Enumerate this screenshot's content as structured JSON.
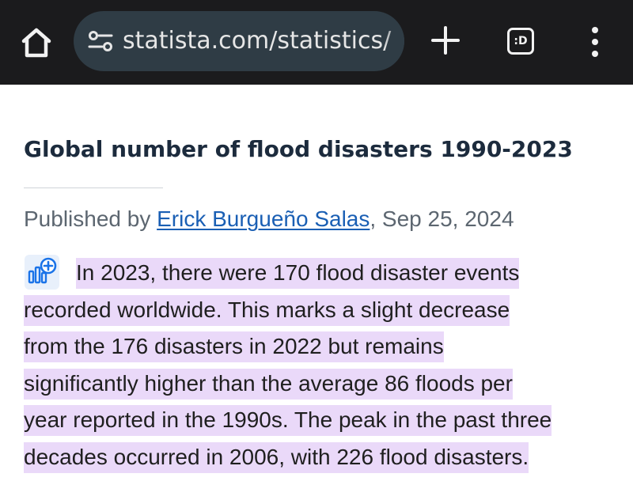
{
  "browser": {
    "url": "statista.com/statistics/",
    "tabs_badge": ":D",
    "icons": {
      "home": "home-icon",
      "site_info": "tune-icon",
      "new_tab": "plus-icon",
      "tabs": "tab-switcher-icon",
      "menu": "more-vert-icon"
    },
    "colors": {
      "bar": "#1b1b1d",
      "url_pill": "#2f3c45"
    }
  },
  "article": {
    "title": "Global number of flood disasters 1990-2023",
    "byline_prefix": "Published by ",
    "author": "Erick Burgueño Salas",
    "byline_suffix": ", Sep 25, 2024",
    "description_lines": [
      "In 2023, there were 170 flood disaster events",
      "recorded worldwide. This marks a slight decrease",
      "from the 176 disasters in 2022 but remains",
      "significantly higher than the average 86 floods per",
      "year reported in the 1990s. The peak in the past three",
      "decades occurred in 2006, with 226 flood disasters."
    ],
    "colors": {
      "title": "#1c2b3d",
      "link": "#1a5fb4",
      "highlight": "#ead9f9",
      "icon_blue": "#1a73e8"
    }
  }
}
